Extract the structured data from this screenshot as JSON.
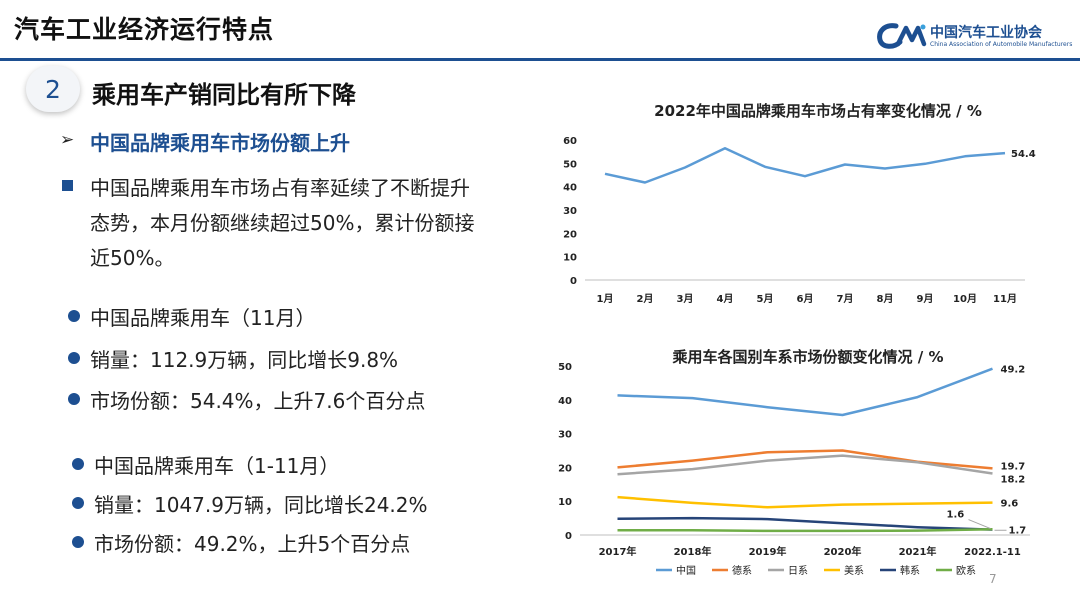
{
  "header": {
    "title": "汽车工业经济运行特点"
  },
  "logo": {
    "name_cn": "中国汽车工业协会",
    "name_en": "China Association of Automobile Manufacturers"
  },
  "section": {
    "number": "2",
    "title": "乘用车产销同比有所下降"
  },
  "bullets": {
    "heading": "中国品牌乘用车市场份额上升",
    "paragraph": [
      "中国品牌乘用车市场占有率延续了不断提升",
      "态势，本月份额继续超过50%，累计份额接",
      "近50%。"
    ],
    "month": [
      "中国品牌乘用车（11月）",
      "销量：112.9万辆，同比增长9.8%",
      "市场份额：54.4%，上升7.6个百分点"
    ],
    "ytd": [
      "中国品牌乘用车（1-11月）",
      "销量：1047.9万辆，同比增长24.2%",
      "市场份额：49.2%，上升5个百分点"
    ]
  },
  "page_number": "7",
  "chart_data": [
    {
      "type": "line",
      "title": "2022年中国品牌乘用车市场占有率变化情况 / %",
      "categories": [
        "1月",
        "2月",
        "3月",
        "4月",
        "5月",
        "6月",
        "7月",
        "8月",
        "9月",
        "10月",
        "11月"
      ],
      "series": [
        {
          "values": [
            45.5,
            41.8,
            48.2,
            56.5,
            48.5,
            44.5,
            49.5,
            47.8,
            49.8,
            53.0,
            54.4
          ],
          "color": "#5b9bd5"
        }
      ],
      "ylim": [
        0,
        60
      ],
      "yticks": [
        "0",
        "10",
        "20",
        "30",
        "40",
        "50",
        "60"
      ],
      "end_label": "54.4",
      "grid": false
    },
    {
      "type": "line",
      "title": "乘用车各国别车系市场份额变化情况 / %",
      "categories": [
        "2017年",
        "2018年",
        "2019年",
        "2020年",
        "2021年",
        "2022.1-11"
      ],
      "series": [
        {
          "name": "中国",
          "values": [
            41.3,
            40.5,
            37.8,
            35.5,
            40.8,
            49.2
          ],
          "color": "#5b9bd5"
        },
        {
          "name": "德系",
          "values": [
            20.0,
            22.0,
            24.5,
            25.0,
            21.7,
            19.7
          ],
          "color": "#ed7d31"
        },
        {
          "name": "日系",
          "values": [
            18.0,
            19.5,
            22.0,
            23.5,
            21.5,
            18.2
          ],
          "color": "#a5a5a5"
        },
        {
          "name": "美系",
          "values": [
            11.2,
            9.5,
            8.2,
            9.0,
            9.3,
            9.6
          ],
          "color": "#ffc000"
        },
        {
          "name": "韩系",
          "values": [
            4.8,
            5.0,
            4.7,
            3.5,
            2.3,
            1.6
          ],
          "color": "#264478"
        },
        {
          "name": "欧系",
          "values": [
            1.4,
            1.4,
            1.2,
            1.2,
            1.3,
            1.7
          ],
          "color": "#70ad47"
        }
      ],
      "ylim": [
        0,
        50
      ],
      "yticks": [
        "0",
        "10",
        "20",
        "30",
        "40",
        "50"
      ],
      "end_labels": [
        "49.2",
        "19.7",
        "18.2",
        "9.6",
        "1.6",
        "1.7"
      ],
      "legend": "bottom",
      "grid": false
    }
  ]
}
